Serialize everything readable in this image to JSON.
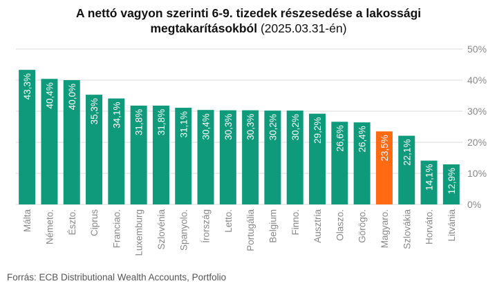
{
  "chart_data": {
    "type": "bar",
    "title_bold": "A nettó vagyon szerinti 6-9. tizedek részesedése a lakossági",
    "title_bold_2": "megtakarításokból",
    "title_normal": "(2025.03.31-én)",
    "categories": [
      "Málta",
      "Németo.",
      "Észto.",
      "Ciprus",
      "Franciao.",
      "Luxemburg",
      "Szlovénia",
      "Spanyolo.",
      "Írország",
      "Letto.",
      "Portugália",
      "Belgium",
      "Finno.",
      "Ausztria",
      "Olaszo.",
      "Görögo.",
      "Magyaro.",
      "Szlovákia",
      "Horváto.",
      "Litvánia"
    ],
    "values": [
      43.3,
      40.4,
      40.0,
      35.3,
      34.1,
      31.8,
      31.8,
      31.1,
      30.4,
      30.3,
      30.3,
      30.2,
      30.2,
      29.2,
      26.6,
      26.4,
      23.5,
      22.1,
      14.1,
      12.9
    ],
    "value_labels": [
      "43,3%",
      "40,4%",
      "40,0%",
      "35,3%",
      "34,1%",
      "31,8%",
      "31,8%",
      "31,1%",
      "30,4%",
      "30,3%",
      "30,3%",
      "30,2%",
      "30,2%",
      "29,2%",
      "26,6%",
      "26,4%",
      "23,5%",
      "22,1%",
      "14,1%",
      "12,9%"
    ],
    "highlight_category": "Magyaro.",
    "colors": {
      "default": "#0e9a7b",
      "highlight": "#ff6a13"
    },
    "ylim": [
      0,
      50
    ],
    "yticks": [
      0,
      10,
      20,
      30,
      40,
      50
    ],
    "ytick_labels": [
      "0%",
      "10%",
      "20%",
      "30%",
      "40%",
      "50%"
    ],
    "y_axis_position": "right",
    "grid": true,
    "legend": "none",
    "xlabel": "",
    "ylabel": ""
  },
  "source": "Forrás: ECB Distributional Wealth Accounts, Portfolio"
}
